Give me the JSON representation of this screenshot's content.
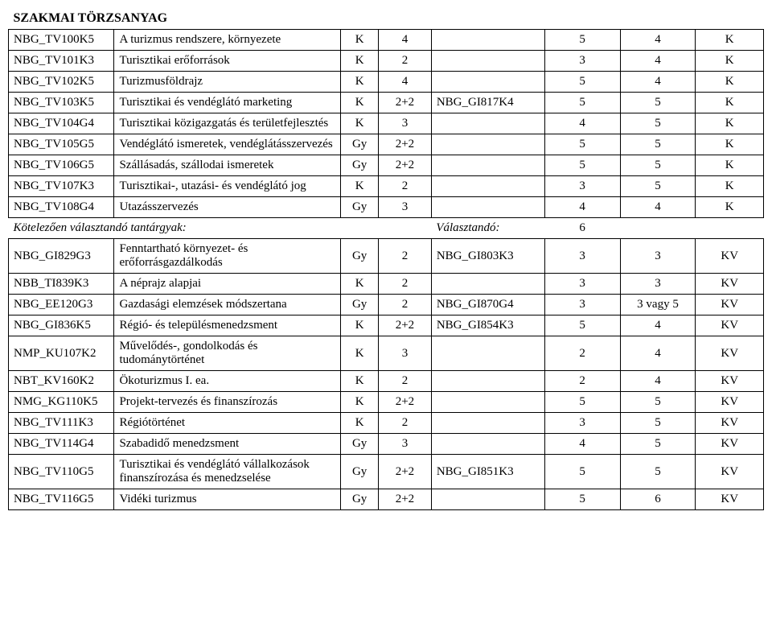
{
  "section_title": "SZAKMAI TÖRZSANYAG",
  "rows": [
    {
      "code": "NBG_TV100K5",
      "desc": "A turizmus rendszere, környezete",
      "type": "K",
      "hours": "4",
      "prereq": "",
      "sem": "5",
      "cred": "4",
      "grade": "K"
    },
    {
      "code": "NBG_TV101K3",
      "desc": "Turisztikai erőforrások",
      "type": "K",
      "hours": "2",
      "prereq": "",
      "sem": "3",
      "cred": "4",
      "grade": "K"
    },
    {
      "code": "NBG_TV102K5",
      "desc": "Turizmusföldrajz",
      "type": "K",
      "hours": "4",
      "prereq": "",
      "sem": "5",
      "cred": "4",
      "grade": "K"
    },
    {
      "code": "NBG_TV103K5",
      "desc": "Turisztikai és vendéglátó marketing",
      "type": "K",
      "hours": "2+2",
      "prereq": "NBG_GI817K4",
      "sem": "5",
      "cred": "5",
      "grade": "K"
    },
    {
      "code": "NBG_TV104G4",
      "desc": "Turisztikai közigazgatás és területfejlesztés",
      "type": "K",
      "hours": "3",
      "prereq": "",
      "sem": "4",
      "cred": "5",
      "grade": "K"
    },
    {
      "code": "NBG_TV105G5",
      "desc": "Vendéglátó ismeretek, vendéglátásszervezés",
      "type": "Gy",
      "hours": "2+2",
      "prereq": "",
      "sem": "5",
      "cred": "5",
      "grade": "K"
    },
    {
      "code": "NBG_TV106G5",
      "desc": "Szállásadás, szállodai ismeretek",
      "type": "Gy",
      "hours": "2+2",
      "prereq": "",
      "sem": "5",
      "cred": "5",
      "grade": "K"
    },
    {
      "code": "NBG_TV107K3",
      "desc": "Turisztikai-, utazási- és vendéglátó jog",
      "type": "K",
      "hours": "2",
      "prereq": "",
      "sem": "3",
      "cred": "5",
      "grade": "K"
    },
    {
      "code": "NBG_TV108G4",
      "desc": "Utazásszervezés",
      "type": "Gy",
      "hours": "3",
      "prereq": "",
      "sem": "4",
      "cred": "4",
      "grade": "K"
    }
  ],
  "subheader": {
    "left": "Kötelezően választandó tantárgyak:",
    "mid": "Választandó:",
    "num": "6"
  },
  "rows2": [
    {
      "code": "NBG_GI829G3",
      "desc": "Fenntartható környezet- és erőforrásgazdálkodás",
      "type": "Gy",
      "hours": "2",
      "prereq": "NBG_GI803K3",
      "sem": "3",
      "cred": "3",
      "grade": "KV"
    },
    {
      "code": "NBB_TI839K3",
      "desc": "A néprajz alapjai",
      "type": "K",
      "hours": "2",
      "prereq": "",
      "sem": "3",
      "cred": "3",
      "grade": "KV"
    },
    {
      "code": "NBG_EE120G3",
      "desc": "Gazdasági elemzések módszertana",
      "type": "Gy",
      "hours": "2",
      "prereq": "NBG_GI870G4",
      "sem": "3",
      "cred": "3 vagy 5",
      "grade": "KV"
    },
    {
      "code": "NBG_GI836K5",
      "desc": "Régió- és településmenedzsment",
      "type": "K",
      "hours": "2+2",
      "prereq": "NBG_GI854K3",
      "sem": "5",
      "cred": "4",
      "grade": "KV"
    },
    {
      "code": "NMP_KU107K2",
      "desc": "Művelődés-, gondolkodás és tudománytörténet",
      "type": "K",
      "hours": "3",
      "prereq": "",
      "sem": "2",
      "cred": "4",
      "grade": "KV"
    },
    {
      "code": "NBT_KV160K2",
      "desc": "Ökoturizmus I. ea.",
      "type": "K",
      "hours": "2",
      "prereq": "",
      "sem": "2",
      "cred": "4",
      "grade": "KV"
    },
    {
      "code": "NMG_KG110K5",
      "desc": "Projekt-tervezés és finanszírozás",
      "type": "K",
      "hours": "2+2",
      "prereq": "",
      "sem": "5",
      "cred": "5",
      "grade": "KV"
    },
    {
      "code": "NBG_TV111K3",
      "desc": "Régiótörténet",
      "type": "K",
      "hours": "2",
      "prereq": "",
      "sem": "3",
      "cred": "5",
      "grade": "KV"
    },
    {
      "code": "NBG_TV114G4",
      "desc": "Szabadidő menedzsment",
      "type": "Gy",
      "hours": "3",
      "prereq": "",
      "sem": "4",
      "cred": "5",
      "grade": "KV"
    },
    {
      "code": "NBG_TV110G5",
      "desc": "Turisztikai és vendéglátó vállalkozások finanszírozása és menedzselése",
      "type": "Gy",
      "hours": "2+2",
      "prereq": "NBG_GI851K3",
      "sem": "5",
      "cred": "5",
      "grade": "KV"
    },
    {
      "code": "NBG_TV116G5",
      "desc": "Vidéki turizmus",
      "type": "Gy",
      "hours": "2+2",
      "prereq": "",
      "sem": "5",
      "cred": "6",
      "grade": "KV"
    }
  ]
}
